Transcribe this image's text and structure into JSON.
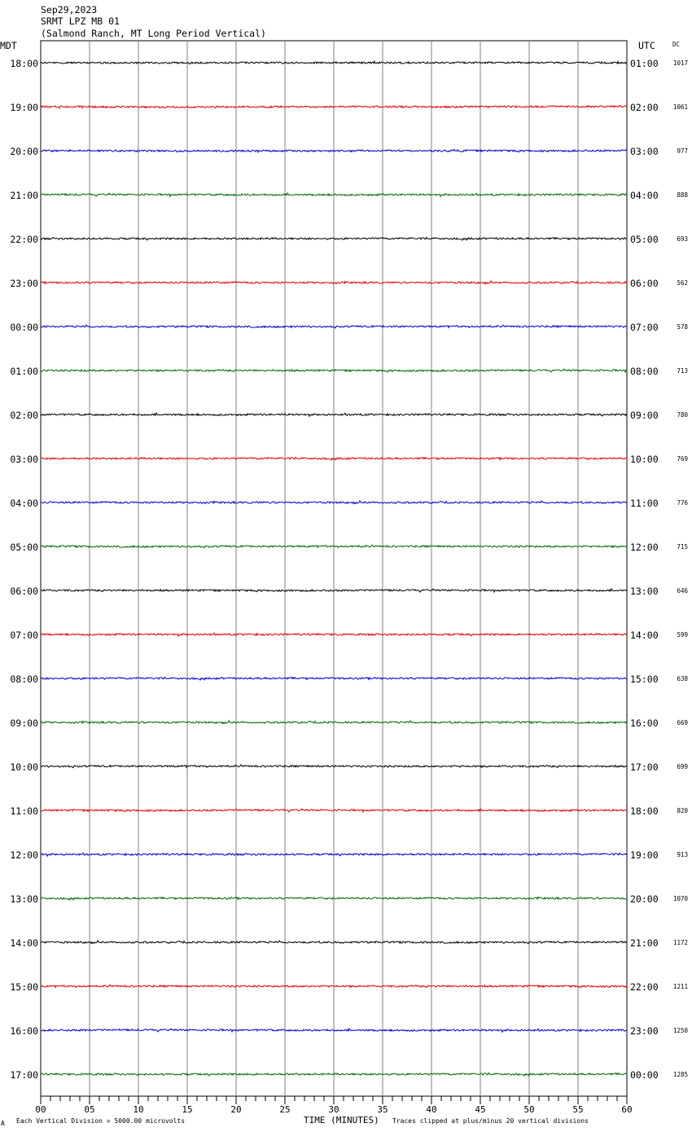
{
  "header": {
    "date": "Sep29,2023",
    "station": "SRMT LPZ MB 01",
    "location": "(Salmond Ranch, MT Long Period Vertical)",
    "left_zone": "MDT",
    "right_zone": "UTC",
    "dc_label": "DC"
  },
  "footer": {
    "scale_note": "Each Vertical Division = 5000.00 microvolts",
    "xlabel": "TIME (MINUTES)",
    "clip_note": "Traces clipped at plus/minus 20 vertical divisions",
    "corner_mark": "A"
  },
  "colors": [
    "#000000",
    "#dd0000",
    "#0000cc",
    "#006600"
  ],
  "chart_data": {
    "type": "line",
    "xlabel": "TIME (MINUTES)",
    "xlim": [
      0,
      60
    ],
    "x_ticks": [
      "00",
      "05",
      "10",
      "15",
      "20",
      "25",
      "30",
      "35",
      "40",
      "45",
      "50",
      "55",
      "60"
    ],
    "rows": [
      {
        "mdt": "18:00",
        "utc": "01:00",
        "dc": "1017"
      },
      {
        "mdt": "19:00",
        "utc": "02:00",
        "dc": "1061"
      },
      {
        "mdt": "20:00",
        "utc": "03:00",
        "dc": "977"
      },
      {
        "mdt": "21:00",
        "utc": "04:00",
        "dc": "888"
      },
      {
        "mdt": "22:00",
        "utc": "05:00",
        "dc": "693"
      },
      {
        "mdt": "23:00",
        "utc": "06:00",
        "dc": "562"
      },
      {
        "mdt": "00:00",
        "utc": "07:00",
        "dc": "578"
      },
      {
        "mdt": "01:00",
        "utc": "08:00",
        "dc": "713"
      },
      {
        "mdt": "02:00",
        "utc": "09:00",
        "dc": "780"
      },
      {
        "mdt": "03:00",
        "utc": "10:00",
        "dc": "769"
      },
      {
        "mdt": "04:00",
        "utc": "11:00",
        "dc": "776"
      },
      {
        "mdt": "05:00",
        "utc": "12:00",
        "dc": "715"
      },
      {
        "mdt": "06:00",
        "utc": "13:00",
        "dc": "646"
      },
      {
        "mdt": "07:00",
        "utc": "14:00",
        "dc": "599"
      },
      {
        "mdt": "08:00",
        "utc": "15:00",
        "dc": "638"
      },
      {
        "mdt": "09:00",
        "utc": "16:00",
        "dc": "669"
      },
      {
        "mdt": "10:00",
        "utc": "17:00",
        "dc": "699"
      },
      {
        "mdt": "11:00",
        "utc": "18:00",
        "dc": "820"
      },
      {
        "mdt": "12:00",
        "utc": "19:00",
        "dc": "913"
      },
      {
        "mdt": "13:00",
        "utc": "20:00",
        "dc": "1070"
      },
      {
        "mdt": "14:00",
        "utc": "21:00",
        "dc": "1172"
      },
      {
        "mdt": "15:00",
        "utc": "22:00",
        "dc": "1211"
      },
      {
        "mdt": "16:00",
        "utc": "23:00",
        "dc": "1250"
      },
      {
        "mdt": "17:00",
        "utc": "00:00",
        "dc": "1285"
      }
    ]
  }
}
